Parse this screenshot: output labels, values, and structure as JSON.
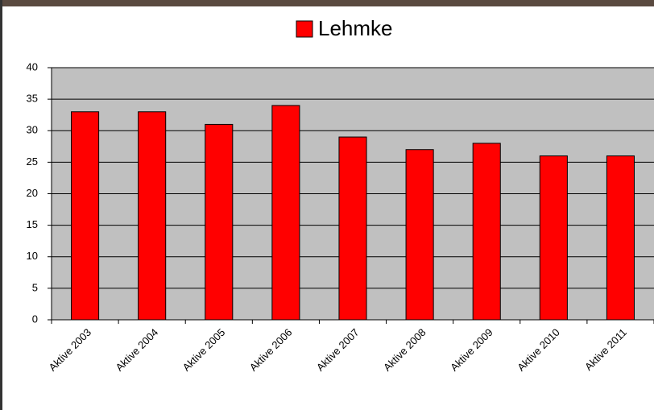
{
  "chart_data": {
    "type": "bar",
    "categories": [
      "Aktive 2003",
      "Aktive 2004",
      "Aktive 2005",
      "Aktive 2006",
      "Aktive 2007",
      "Aktive 2008",
      "Aktive 2009",
      "Aktive 2010",
      "Aktive 2011"
    ],
    "series": [
      {
        "name": "Lehmke",
        "color": "#ff0000",
        "values": [
          33,
          33,
          31,
          34,
          29,
          27,
          28,
          26,
          26
        ]
      }
    ],
    "ylim": [
      0,
      40
    ],
    "yticks": [
      0,
      5,
      10,
      15,
      20,
      25,
      30,
      35,
      40
    ],
    "grid": true,
    "legend": "top"
  }
}
